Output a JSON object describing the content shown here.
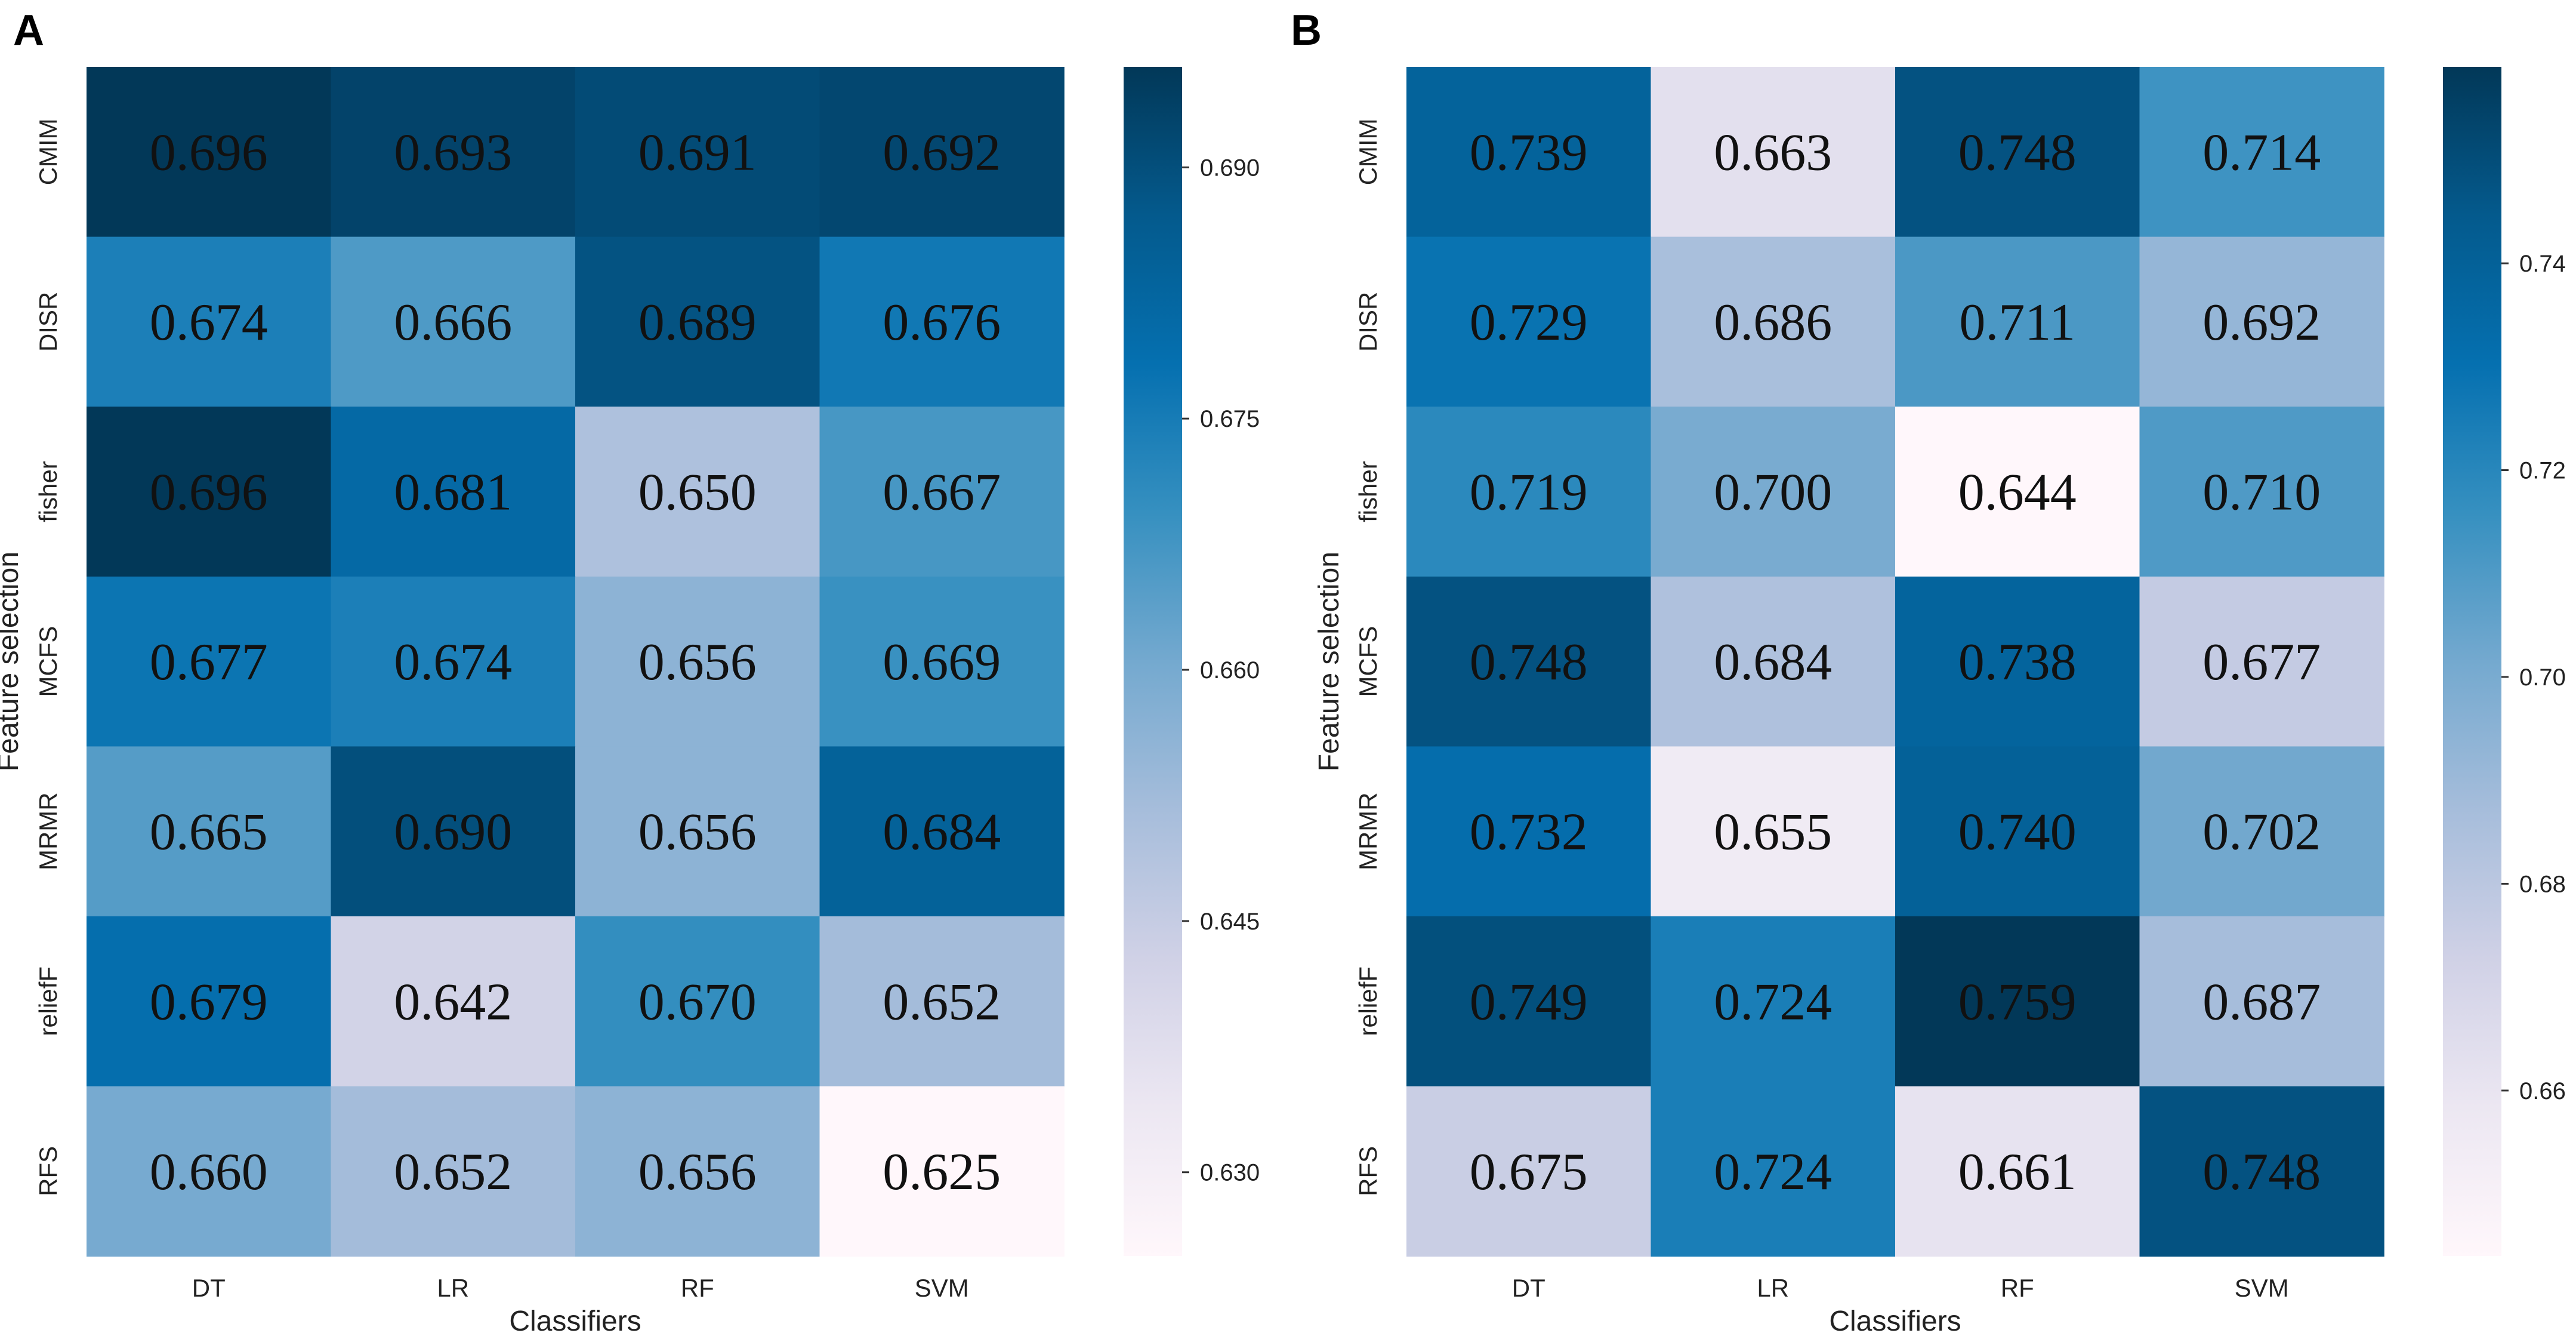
{
  "chart_data": [
    {
      "type": "heatmap",
      "panel_label": "A",
      "xlabel": "Classifiers",
      "ylabel": "Feature selection",
      "x_categories": [
        "DT",
        "LR",
        "RF",
        "SVM"
      ],
      "y_categories": [
        "CMIM",
        "DISR",
        "fisher",
        "MCFS",
        "MRMR",
        "reliefF",
        "RFS"
      ],
      "values": [
        [
          0.696,
          0.693,
          0.691,
          0.692
        ],
        [
          0.674,
          0.666,
          0.689,
          0.676
        ],
        [
          0.696,
          0.681,
          0.65,
          0.667
        ],
        [
          0.677,
          0.674,
          0.656,
          0.669
        ],
        [
          0.665,
          0.69,
          0.656,
          0.684
        ],
        [
          0.679,
          0.642,
          0.67,
          0.652
        ],
        [
          0.66,
          0.652,
          0.656,
          0.625
        ]
      ],
      "labels": [
        [
          "0.696",
          "0.693",
          "0.691",
          "0.692"
        ],
        [
          "0.674",
          "0.666",
          "0.689",
          "0.676"
        ],
        [
          "0.696",
          "0.681",
          "0.650",
          "0.667"
        ],
        [
          "0.677",
          "0.674",
          "0.656",
          "0.669"
        ],
        [
          "0.665",
          "0.690",
          "0.656",
          "0.684"
        ],
        [
          "0.679",
          "0.642",
          "0.670",
          "0.652"
        ],
        [
          "0.660",
          "0.652",
          "0.656",
          "0.625"
        ]
      ],
      "colorbar": {
        "range": [
          0.625,
          0.696
        ],
        "ticks": [
          0.63,
          0.645,
          0.66,
          0.675,
          0.69
        ],
        "tick_labels": [
          "0.630",
          "0.645",
          "0.660",
          "0.675",
          "0.690"
        ]
      },
      "colormap": "PuBu"
    },
    {
      "type": "heatmap",
      "panel_label": "B",
      "xlabel": "Classifiers",
      "ylabel": "Feature selection",
      "x_categories": [
        "DT",
        "LR",
        "RF",
        "SVM"
      ],
      "y_categories": [
        "CMIM",
        "DISR",
        "fisher",
        "MCFS",
        "MRMR",
        "reliefF",
        "RFS"
      ],
      "values": [
        [
          0.739,
          0.663,
          0.748,
          0.714
        ],
        [
          0.729,
          0.686,
          0.711,
          0.692
        ],
        [
          0.719,
          0.7,
          0.644,
          0.71
        ],
        [
          0.748,
          0.684,
          0.738,
          0.677
        ],
        [
          0.732,
          0.655,
          0.74,
          0.702
        ],
        [
          0.749,
          0.724,
          0.759,
          0.687
        ],
        [
          0.675,
          0.724,
          0.661,
          0.748
        ]
      ],
      "labels": [
        [
          "0.739",
          "0.663",
          "0.748",
          "0.714"
        ],
        [
          "0.729",
          "0.686",
          "0.711",
          "0.692"
        ],
        [
          "0.719",
          "0.700",
          "0.644",
          "0.710"
        ],
        [
          "0.748",
          "0.684",
          "0.738",
          "0.677"
        ],
        [
          "0.732",
          "0.655",
          "0.740",
          "0.702"
        ],
        [
          "0.749",
          "0.724",
          "0.759",
          "0.687"
        ],
        [
          "0.675",
          "0.724",
          "0.661",
          "0.748"
        ]
      ],
      "colorbar": {
        "range": [
          0.644,
          0.759
        ],
        "ticks": [
          0.66,
          0.68,
          0.7,
          0.72,
          0.74
        ],
        "tick_labels": [
          "0.66",
          "0.68",
          "0.70",
          "0.72",
          "0.74"
        ]
      },
      "colormap": "PuBu"
    }
  ]
}
